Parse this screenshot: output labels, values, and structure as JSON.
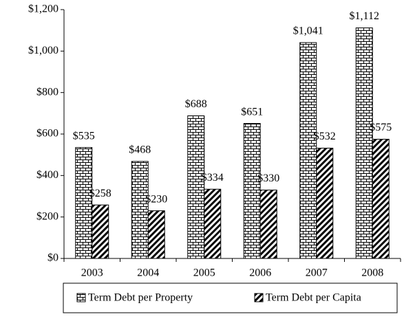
{
  "chart_data": {
    "type": "bar",
    "categories": [
      "2003",
      "2004",
      "2005",
      "2006",
      "2007",
      "2008"
    ],
    "series": [
      {
        "name": "Term Debt per Property",
        "values": [
          535,
          468,
          688,
          651,
          1041,
          1112
        ],
        "value_labels": [
          "$535",
          "$468",
          "$688",
          "$651",
          "$1,041",
          "$1,112"
        ]
      },
      {
        "name": "Term Debt per Capita",
        "values": [
          258,
          230,
          334,
          330,
          532,
          575
        ],
        "value_labels": [
          "$258",
          "$230",
          "$334",
          "$330",
          "$532",
          "$575"
        ]
      }
    ],
    "ylim": [
      0,
      1200
    ],
    "yticks": [
      {
        "value": 0,
        "label": "$0"
      },
      {
        "value": 200,
        "label": "$200"
      },
      {
        "value": 400,
        "label": "$400"
      },
      {
        "value": 600,
        "label": "$600"
      },
      {
        "value": 800,
        "label": "$800"
      },
      {
        "value": 1000,
        "label": "$1,000"
      },
      {
        "value": 1200,
        "label": "$1,200"
      }
    ],
    "grid": false
  }
}
